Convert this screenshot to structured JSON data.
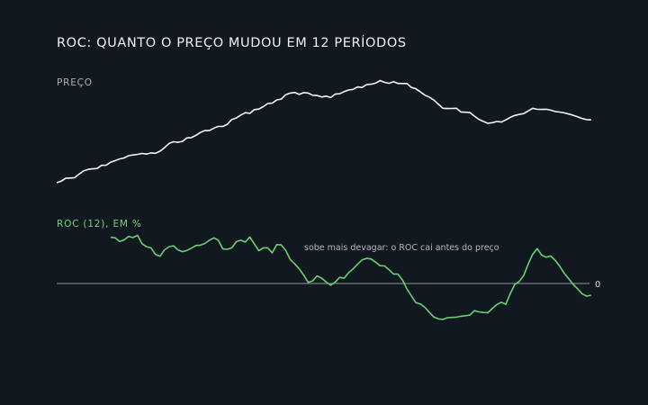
{
  "title": "ROC: QUANTO O PREÇO MUDOU EM 12 PERÍODOS",
  "colors": {
    "background": "#121820",
    "price_line": "#f4f4f4",
    "roc_line": "#6ccf74",
    "zero_line": "#b9bcc0"
  },
  "chart_data": [
    {
      "type": "line",
      "title": "PREÇO",
      "x": [
        0,
        1,
        2,
        3,
        4,
        5,
        6,
        7,
        8,
        9,
        10,
        11,
        12,
        13,
        14,
        15,
        16,
        17,
        18,
        19,
        20,
        21,
        22,
        23,
        24,
        25,
        26,
        27,
        28,
        29,
        30,
        31,
        32,
        33,
        34,
        35,
        36,
        37,
        38,
        39,
        40,
        41,
        42,
        43,
        44,
        45,
        46,
        47,
        48,
        49,
        50,
        51,
        52,
        53,
        54,
        55,
        56,
        57,
        58,
        59,
        60,
        61,
        62,
        63,
        64,
        65,
        66,
        67,
        68,
        69,
        70,
        71,
        72,
        73,
        74,
        75,
        76,
        77,
        78,
        79,
        80,
        81,
        82,
        83,
        84,
        85,
        86,
        87,
        88,
        89,
        90,
        91,
        92,
        93,
        94,
        95,
        96,
        97,
        98,
        99,
        100,
        101,
        102,
        103,
        104,
        105,
        106,
        107,
        108,
        109,
        110,
        111,
        112,
        113,
        114,
        115,
        116,
        117,
        118,
        119
      ],
      "series": [
        {
          "values": [
            100.0,
            101.2,
            103.4,
            103.6,
            103.9,
            106.7,
            109.1,
            110.3,
            110.7,
            111.0,
            113.4,
            113.5,
            115.8,
            117.0,
            118.3,
            119.1,
            120.8,
            121.4,
            121.9,
            122.6,
            122.1,
            123.0,
            122.7,
            124.3,
            127.0,
            130.3,
            131.6,
            131.2,
            131.9,
            134.6,
            134.8,
            136.5,
            138.8,
            140.3,
            140.2,
            142.1,
            143.5,
            143.4,
            145.1,
            148.8,
            149.9,
            152.2,
            154.0,
            153.5,
            156.4,
            156.8,
            158.7,
            161.1,
            161.4,
            163.9,
            164.5,
            167.9,
            169.2,
            169.6,
            168.1,
            169.5,
            169.2,
            167.5,
            167.3,
            166.1,
            166.8,
            165.7,
            168.3,
            168.6,
            170.3,
            171.5,
            172.0,
            173.9,
            173.5,
            175.7,
            176.0,
            176.8,
            178.8,
            177.4,
            176.7,
            178.0,
            176.6,
            176.5,
            176.5,
            173.5,
            172.4,
            170.0,
            167.5,
            166.0,
            163.7,
            160.5,
            157.4,
            157.2,
            157.3,
            157.4,
            154.6,
            154.4,
            154.2,
            151.4,
            148.9,
            147.3,
            145.8,
            146.3,
            147.2,
            146.8,
            148.5,
            150.4,
            151.9,
            152.7,
            153.3,
            155.4,
            157.4,
            156.6,
            156.5,
            156.7,
            156.0,
            154.9,
            154.5,
            153.9,
            153.0,
            152.0,
            150.8,
            149.5,
            148.7,
            148.5
          ]
        }
      ]
    },
    {
      "type": "line",
      "title": "ROC (12), EM %",
      "x": [
        12,
        13,
        14,
        15,
        16,
        17,
        18,
        19,
        20,
        21,
        22,
        23,
        24,
        25,
        26,
        27,
        28,
        29,
        30,
        31,
        32,
        33,
        34,
        35,
        36,
        37,
        38,
        39,
        40,
        41,
        42,
        43,
        44,
        45,
        46,
        47,
        48,
        49,
        50,
        51,
        52,
        53,
        54,
        55,
        56,
        57,
        58,
        59,
        60,
        61,
        62,
        63,
        64,
        65,
        66,
        67,
        68,
        69,
        70,
        71,
        72,
        73,
        74,
        75,
        76,
        77,
        78,
        79,
        80,
        81,
        82,
        83,
        84,
        85,
        86,
        87,
        88,
        89,
        90,
        91,
        92,
        93,
        94,
        95,
        96,
        97,
        98,
        99,
        100,
        101,
        102,
        103,
        104,
        105,
        106,
        107,
        108,
        109,
        110,
        111,
        112,
        113,
        114,
        115,
        116,
        117,
        118,
        119
      ],
      "series": [
        {
          "values": [
            15.8,
            15.6,
            14.4,
            14.9,
            16.1,
            15.7,
            16.5,
            13.6,
            12.6,
            12.2,
            9.9,
            9.3,
            11.5,
            12.6,
            12.9,
            11.5,
            10.9,
            11.3,
            12.1,
            13.0,
            13.1,
            13.7,
            14.8,
            15.6,
            14.8,
            11.8,
            11.7,
            12.2,
            14.3,
            14.8,
            14.2,
            15.9,
            13.5,
            11.2,
            12.2,
            12.2,
            10.5,
            13.3,
            13.2,
            11.3,
            8.2,
            6.7,
            5.0,
            2.9,
            0.4,
            0.9,
            2.6,
            1.8,
            0.5,
            -0.6,
            0.5,
            2.1,
            1.8,
            3.7,
            5.0,
            6.6,
            8.1,
            8.6,
            8.4,
            7.3,
            6.1,
            6.0,
            4.7,
            3.2,
            3.2,
            1.2,
            -1.9,
            -4.3,
            -6.6,
            -7.0,
            -8.2,
            -9.9,
            -11.5,
            -12.1,
            -12.3,
            -11.7,
            -11.6,
            -11.5,
            -11.2,
            -11.0,
            -10.8,
            -9.3,
            -9.7,
            -9.9,
            -10.0,
            -8.6,
            -7.2,
            -6.4,
            -7.1,
            -3.4,
            -0.3,
            0.7,
            2.8,
            6.7,
            10.0,
            11.9,
            9.7,
            9.0,
            9.4,
            7.9,
            5.9,
            3.5,
            1.6,
            -0.3,
            -1.8,
            -3.5,
            -4.3,
            -4.0
          ]
        }
      ],
      "zero_tick": "0",
      "annotations": [
        "sobe mais devagar: o ROC cai antes do preço"
      ],
      "grid": false
    }
  ]
}
